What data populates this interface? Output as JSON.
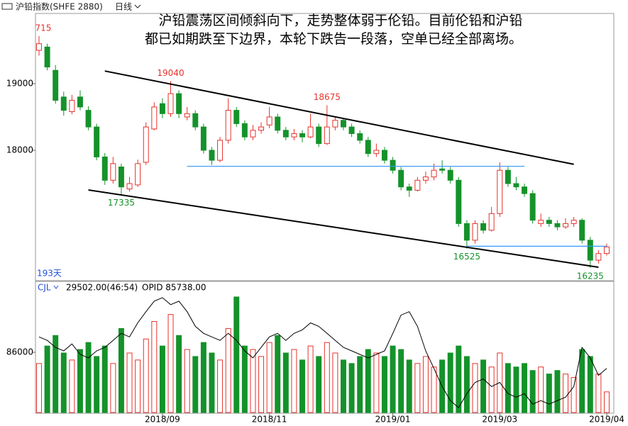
{
  "header": {
    "symbol": "沪铅指数(SHFE 2880)",
    "period": "日线"
  },
  "annotation_text": [
    "沪铅震荡区间倾斜向下，走势整体弱于伦铅。目前伦铅和沪铅",
    "都已如期跌至下边界，本轮下跌告一段落，空单已经全部离场。"
  ],
  "chart_data": {
    "type": "candlestick",
    "days_label": "193天",
    "up_color": "#e8322b",
    "down_color": "#14922a",
    "ylim": [
      16053,
      20043
    ],
    "yticks": [
      18000,
      19000
    ],
    "xticks": [
      {
        "value": 15,
        "label": "2018/09"
      },
      {
        "value": 28,
        "label": "2018/11"
      },
      {
        "value": 43,
        "label": "2019/01"
      },
      {
        "value": 56,
        "label": "2019/03"
      },
      {
        "value": 69,
        "label": "2019/04"
      }
    ],
    "candles": [
      [
        19500,
        19715,
        19420,
        19600
      ],
      [
        19550,
        19600,
        19200,
        19250
      ],
      [
        19200,
        19280,
        18700,
        18750
      ],
      [
        18800,
        18880,
        18520,
        18600
      ],
      [
        18580,
        18830,
        18540,
        18750
      ],
      [
        18800,
        18900,
        18600,
        18650
      ],
      [
        18600,
        18660,
        18300,
        18350
      ],
      [
        18350,
        18400,
        17850,
        17900
      ],
      [
        17900,
        17960,
        17480,
        17550
      ],
      [
        17550,
        17900,
        17500,
        17800
      ],
      [
        17750,
        17800,
        17335,
        17450
      ],
      [
        17420,
        17600,
        17380,
        17500
      ],
      [
        17480,
        17860,
        17450,
        17800
      ],
      [
        17820,
        18420,
        17780,
        18350
      ],
      [
        18320,
        18720,
        18300,
        18650
      ],
      [
        18700,
        18780,
        18480,
        18550
      ],
      [
        18550,
        19040,
        18500,
        18850
      ],
      [
        18850,
        18900,
        18480,
        18550
      ],
      [
        18500,
        18650,
        18450,
        18550
      ],
      [
        18550,
        18600,
        18300,
        18350
      ],
      [
        18350,
        18400,
        17950,
        18000
      ],
      [
        18000,
        18050,
        17780,
        17850
      ],
      [
        17850,
        18200,
        17820,
        18150
      ],
      [
        18150,
        18780,
        18100,
        18600
      ],
      [
        18600,
        18650,
        18350,
        18400
      ],
      [
        18400,
        18450,
        18150,
        18200
      ],
      [
        18200,
        18380,
        18150,
        18300
      ],
      [
        18300,
        18420,
        18250,
        18350
      ],
      [
        18380,
        18650,
        18330,
        18500
      ],
      [
        18500,
        18550,
        18250,
        18300
      ],
      [
        18300,
        18350,
        18150,
        18200
      ],
      [
        18200,
        18320,
        18150,
        18250
      ],
      [
        18250,
        18300,
        18120,
        18200
      ],
      [
        18200,
        18550,
        18180,
        18350
      ],
      [
        18350,
        18400,
        18050,
        18100
      ],
      [
        18100,
        18675,
        18080,
        18350
      ],
      [
        18350,
        18500,
        18300,
        18450
      ],
      [
        18450,
        18480,
        18300,
        18350
      ],
      [
        18350,
        18400,
        18200,
        18250
      ],
      [
        18250,
        18300,
        18100,
        18150
      ],
      [
        18150,
        18200,
        17900,
        17950
      ],
      [
        17950,
        18100,
        17900,
        18000
      ],
      [
        18000,
        18050,
        17800,
        17850
      ],
      [
        17850,
        17900,
        17650,
        17700
      ],
      [
        17700,
        17750,
        17400,
        17450
      ],
      [
        17450,
        17500,
        17300,
        17400
      ],
      [
        17400,
        17600,
        17380,
        17550
      ],
      [
        17550,
        17680,
        17500,
        17600
      ],
      [
        17600,
        17800,
        17550,
        17700
      ],
      [
        17720,
        17850,
        17650,
        17700
      ],
      [
        17700,
        17750,
        17500,
        17550
      ],
      [
        17550,
        17600,
        16850,
        16900
      ],
      [
        16900,
        16950,
        16525,
        16650
      ],
      [
        16650,
        16950,
        16600,
        16900
      ],
      [
        16900,
        16950,
        16750,
        16800
      ],
      [
        16800,
        17150,
        16780,
        17050
      ],
      [
        17050,
        17820,
        17000,
        17700
      ],
      [
        17700,
        17750,
        17450,
        17500
      ],
      [
        17500,
        17600,
        17400,
        17450
      ],
      [
        17450,
        17500,
        17300,
        17350
      ],
      [
        17350,
        17400,
        16900,
        16950
      ],
      [
        16900,
        17050,
        16850,
        16950
      ],
      [
        16950,
        17000,
        16850,
        16900
      ],
      [
        16900,
        16950,
        16800,
        16850
      ],
      [
        16850,
        16980,
        16820,
        16900
      ],
      [
        16900,
        17000,
        16850,
        16950
      ],
      [
        16950,
        16980,
        16600,
        16650
      ],
      [
        16650,
        16700,
        16235,
        16350
      ],
      [
        16350,
        16500,
        16300,
        16450
      ],
      [
        16450,
        16600,
        16420,
        16550
      ]
    ],
    "price_labels": [
      {
        "text": "715",
        "candle": 0,
        "at": "high",
        "color": "#e8322b"
      },
      {
        "text": "19040",
        "candle": 16,
        "at": "high",
        "color": "#e8322b"
      },
      {
        "text": "18675",
        "candle": 35,
        "at": "high",
        "color": "#e8322b"
      },
      {
        "text": "17335",
        "candle": 10,
        "at": "low",
        "color": "#14922a"
      },
      {
        "text": "16525",
        "candle": 52,
        "at": "low",
        "color": "#14922a"
      },
      {
        "text": "16235",
        "candle": 67,
        "at": "low",
        "color": "#14922a"
      }
    ],
    "trend_lines": [
      {
        "from": [
          8,
          19190
        ],
        "to": [
          65,
          17790
        ],
        "color": "#000000"
      },
      {
        "from": [
          6,
          17404
        ],
        "to": [
          68,
          16245
        ],
        "color": "#000000"
      },
      {
        "from": [
          18,
          17760
        ],
        "to": [
          59,
          17760
        ],
        "color": "#3399ff"
      },
      {
        "from": [
          52,
          16560
        ],
        "to": [
          69,
          16560
        ],
        "color": "#3399ff"
      }
    ],
    "volume": {
      "label": "CJL",
      "readout": "29502.00(46:54)",
      "oi_readout": "OPID 85738.00",
      "ylim": [
        0,
        170000
      ],
      "yticks": [
        86000
      ],
      "line_color": "#000000",
      "values": [
        70000,
        95000,
        110000,
        85000,
        75000,
        90000,
        100000,
        80000,
        95000,
        70000,
        120000,
        85000,
        75000,
        105000,
        130000,
        95000,
        140000,
        110000,
        90000,
        80000,
        100000,
        85000,
        75000,
        120000,
        165000,
        95000,
        90000,
        80000,
        100000,
        110000,
        85000,
        90000,
        75000,
        95000,
        80000,
        100000,
        85000,
        75000,
        70000,
        80000,
        90000,
        85000,
        80000,
        95000,
        90000,
        75000,
        70000,
        80000,
        65000,
        75000,
        85000,
        95000,
        80000,
        70000,
        75000,
        65000,
        85000,
        70000,
        65000,
        70000,
        60000,
        65000,
        55000,
        60000,
        55000,
        50000,
        90000,
        80000,
        55000,
        29502
      ],
      "open_interest": [
        108000,
        103000,
        93000,
        88000,
        98000,
        83000,
        78000,
        88000,
        93000,
        103000,
        113000,
        108000,
        128000,
        144000,
        159000,
        164000,
        154000,
        159000,
        144000,
        123000,
        113000,
        108000,
        103000,
        113000,
        103000,
        88000,
        78000,
        93000,
        108000,
        113000,
        103000,
        113000,
        118000,
        128000,
        123000,
        113000,
        103000,
        93000,
        88000,
        83000,
        78000,
        83000,
        88000,
        113000,
        139000,
        144000,
        123000,
        88000,
        63000,
        37000,
        17000,
        7000,
        27000,
        43000,
        48000,
        37000,
        43000,
        27000,
        22000,
        27000,
        12000,
        17000,
        12000,
        17000,
        22000,
        37000,
        93000,
        78000,
        53000,
        63000
      ]
    }
  }
}
